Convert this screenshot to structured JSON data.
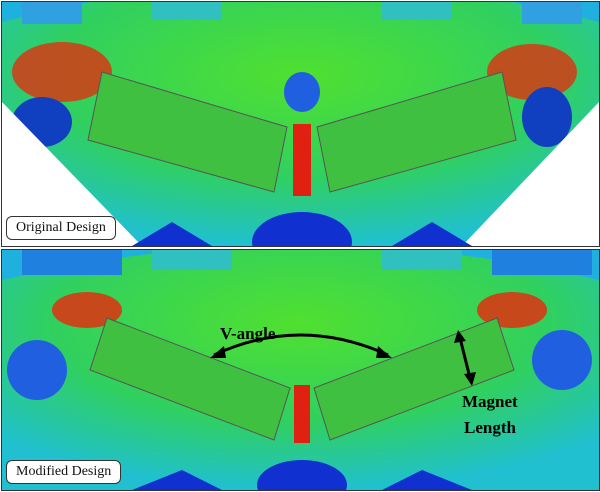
{
  "panels": [
    {
      "label": "Original Design"
    },
    {
      "label": "Modified Design"
    }
  ],
  "annotations": {
    "v_angle": "V-angle",
    "magnet_length_1": "Magnet",
    "magnet_length_2": "Length"
  },
  "colors": {
    "field_low": "#1030d0",
    "field_mid": "#30d030",
    "field_high": "#e02010",
    "magnet": "#40c040"
  }
}
